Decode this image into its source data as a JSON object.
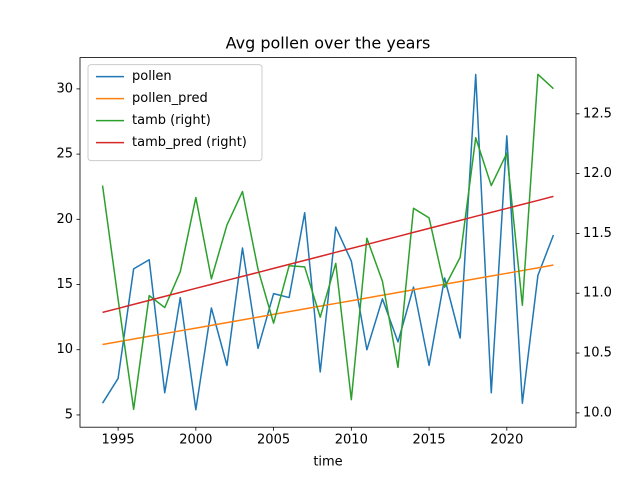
{
  "chart_data": {
    "type": "line",
    "title": "Avg pollen over the years",
    "xlabel": "time",
    "x": [
      1994,
      1995,
      1996,
      1997,
      1998,
      1999,
      2000,
      2001,
      2002,
      2003,
      2004,
      2005,
      2006,
      2007,
      2008,
      2009,
      2010,
      2011,
      2012,
      2013,
      2014,
      2015,
      2016,
      2017,
      2018,
      2019,
      2020,
      2021,
      2022,
      2023
    ],
    "series": [
      {
        "name": "pollen",
        "color": "#1f77b4",
        "axis": "y",
        "values": [
          5.9,
          7.8,
          16.2,
          16.9,
          6.7,
          14.0,
          5.4,
          13.2,
          8.8,
          17.8,
          10.1,
          14.3,
          14.0,
          20.5,
          8.3,
          19.4,
          16.8,
          10.0,
          13.9,
          10.6,
          14.8,
          8.8,
          15.5,
          10.9,
          31.1,
          6.7,
          26.4,
          5.9,
          15.7,
          18.8
        ]
      },
      {
        "name": "pollen_pred",
        "color": "#ff7f0e",
        "axis": "y",
        "values": [
          10.4,
          10.61,
          10.82,
          11.03,
          11.24,
          11.45,
          11.66,
          11.87,
          12.08,
          12.29,
          12.5,
          12.71,
          12.92,
          13.13,
          13.34,
          13.55,
          13.76,
          13.97,
          14.18,
          14.39,
          14.6,
          14.81,
          15.02,
          15.23,
          15.44,
          15.65,
          15.86,
          16.07,
          16.28,
          16.5
        ]
      },
      {
        "name": "tamb (right)",
        "color": "#2ca02c",
        "axis": "y2",
        "values": [
          11.9,
          10.95,
          10.03,
          10.98,
          10.88,
          11.18,
          11.8,
          11.12,
          11.57,
          11.85,
          11.2,
          10.75,
          11.23,
          11.22,
          10.8,
          11.25,
          10.11,
          11.46,
          11.1,
          10.38,
          11.71,
          11.63,
          11.05,
          11.3,
          12.3,
          11.9,
          12.17,
          10.9,
          12.83,
          12.71
        ]
      },
      {
        "name": "tamb_pred (right)",
        "color": "#d62728",
        "axis": "y2",
        "values": [
          10.84,
          10.873,
          10.907,
          10.94,
          10.974,
          11.007,
          11.041,
          11.074,
          11.108,
          11.141,
          11.174,
          11.208,
          11.241,
          11.275,
          11.308,
          11.342,
          11.375,
          11.408,
          11.442,
          11.475,
          11.509,
          11.542,
          11.576,
          11.609,
          11.643,
          11.676,
          11.709,
          11.743,
          11.776,
          11.81
        ]
      }
    ],
    "xlim": [
      1992.55,
      2024.45
    ],
    "xticks": [
      1995,
      2000,
      2005,
      2010,
      2015,
      2020
    ],
    "ylim": [
      4.06,
      32.4
    ],
    "yticks": [
      5,
      10,
      15,
      20,
      25,
      30
    ],
    "y2lim": [
      9.88,
      12.97
    ],
    "y2ticks": [
      {
        "value": 10,
        "label": "10.0"
      },
      10.5,
      {
        "value": 11,
        "label": "11.0"
      },
      11.5,
      {
        "value": 12,
        "label": "12.0"
      },
      12.5
    ],
    "legend": "upper left",
    "grid": false
  }
}
